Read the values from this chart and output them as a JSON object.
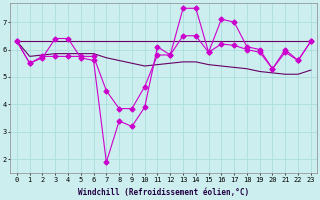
{
  "xlabel": "Windchill (Refroidissement éolien,°C)",
  "background_color": "#cceeee",
  "grid_color": "#aadddd",
  "line_color1": "#cc00cc",
  "line_color2": "#660066",
  "xlim_min": -0.5,
  "xlim_max": 23.5,
  "ylim_min": 1.5,
  "ylim_max": 7.7,
  "yticks": [
    2,
    3,
    4,
    5,
    6,
    7
  ],
  "xticks": [
    0,
    1,
    2,
    3,
    4,
    5,
    6,
    7,
    8,
    9,
    10,
    11,
    12,
    13,
    14,
    15,
    16,
    17,
    18,
    19,
    20,
    21,
    22,
    23
  ],
  "series1_x": [
    0,
    1,
    2,
    3,
    4,
    5,
    6,
    7,
    8,
    9,
    10,
    11,
    12,
    13,
    14,
    15,
    16,
    17,
    18,
    19,
    20,
    21,
    22,
    23
  ],
  "series1_y": [
    6.3,
    5.5,
    5.7,
    6.4,
    6.4,
    5.7,
    5.6,
    1.9,
    3.4,
    3.2,
    3.9,
    6.1,
    5.8,
    7.5,
    7.5,
    5.9,
    7.1,
    7.0,
    6.1,
    6.0,
    5.3,
    6.0,
    5.6,
    6.3
  ],
  "series2_x": [
    0,
    1,
    2,
    3,
    4,
    5,
    6,
    7,
    8,
    9,
    10,
    11,
    12,
    13,
    14,
    15,
    16,
    17,
    18,
    19,
    20,
    21,
    22,
    23
  ],
  "series2_y": [
    6.3,
    5.5,
    5.75,
    5.75,
    5.75,
    5.75,
    5.75,
    4.5,
    3.85,
    3.85,
    4.65,
    5.8,
    5.8,
    6.5,
    6.5,
    5.9,
    6.2,
    6.15,
    6.0,
    5.9,
    5.3,
    5.9,
    5.6,
    6.3
  ],
  "series3_x": [
    0,
    1,
    2,
    3,
    4,
    5,
    6,
    7,
    8,
    9,
    10,
    11,
    12,
    13,
    14,
    15,
    16,
    17,
    18,
    19,
    20,
    21,
    22,
    23
  ],
  "series3_y": [
    6.3,
    5.75,
    5.8,
    5.85,
    5.85,
    5.85,
    5.85,
    5.7,
    5.6,
    5.5,
    5.4,
    5.45,
    5.5,
    5.55,
    5.55,
    5.45,
    5.4,
    5.35,
    5.3,
    5.2,
    5.15,
    5.1,
    5.1,
    5.25
  ],
  "series4_x": [
    0,
    1,
    2,
    3,
    4,
    5,
    6,
    7,
    8,
    9,
    10,
    11,
    12,
    13,
    14,
    15,
    16,
    17,
    18,
    19,
    20,
    21,
    22,
    23
  ],
  "series4_y": [
    6.3,
    6.3,
    6.3,
    6.3,
    6.3,
    6.3,
    6.3,
    6.3,
    6.3,
    6.3,
    6.3,
    6.3,
    6.3,
    6.3,
    6.3,
    6.3,
    6.3,
    6.3,
    6.3,
    6.3,
    6.3,
    6.3,
    6.3,
    6.3
  ],
  "marker_size": 2.5,
  "linewidth": 0.8,
  "tick_fontsize": 5,
  "label_fontsize": 5.5
}
